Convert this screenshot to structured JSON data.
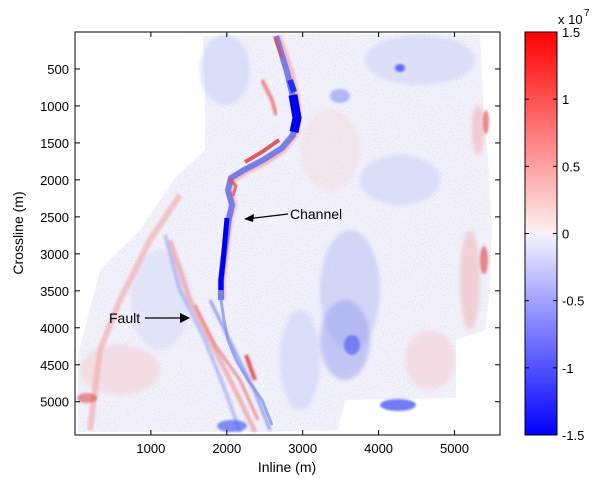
{
  "chart_data": {
    "type": "heatmap",
    "title": "",
    "xlabel": "Inline (m)",
    "ylabel": "Crossline (m)",
    "xlim": [
      0,
      5600
    ],
    "ylim": [
      5450,
      0
    ],
    "x_ticks": [
      1000,
      2000,
      3000,
      4000,
      5000
    ],
    "y_ticks": [
      500,
      1000,
      1500,
      2000,
      2500,
      3000,
      3500,
      4000,
      4500,
      5000
    ],
    "colorbar": {
      "range": [
        -1.5,
        1.5
      ],
      "ticks": [
        -1.5,
        -1,
        -0.5,
        0,
        0.5,
        1,
        1.5
      ],
      "tick_labels": [
        "-1.5",
        "-1",
        "-0.5",
        "0",
        "0.5",
        "1",
        "1.5"
      ],
      "exponent_label": "x 10",
      "exponent": "7",
      "colors": {
        "low": "#0000ff",
        "mid": "#ffffff",
        "high": "#ff0000"
      }
    },
    "annotations": [
      {
        "text": "Channel",
        "arrow_to": [
          2200,
          2580
        ],
        "text_at": [
          2900,
          2530
        ]
      },
      {
        "text": "Fault",
        "arrow_to": [
          1550,
          3870
        ],
        "text_at": [
          1050,
          3870
        ]
      }
    ],
    "features": {
      "channel": "narrow negative (blue) band meandering from ~(2800, 0) to ~(2050, 3500), strongest near (2900, 900) and (2050, 2700-3300)",
      "fault": "linear positive/negative streaks running diagonally from ~(1300, 3000) to ~(2800, 5400)"
    }
  }
}
